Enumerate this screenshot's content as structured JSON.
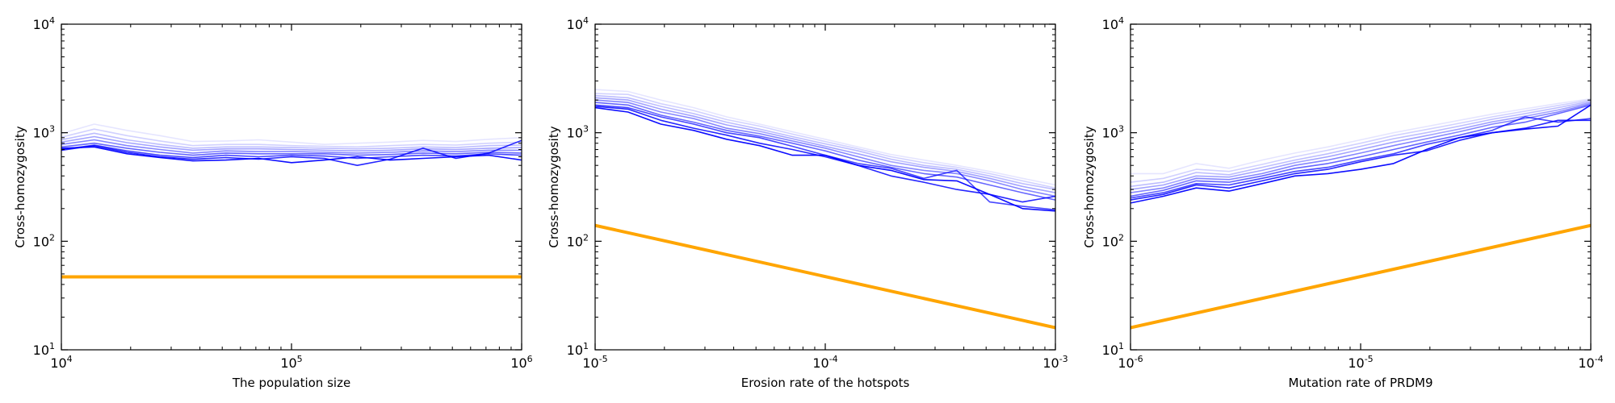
{
  "chart_data": [
    {
      "type": "line",
      "title": "",
      "xlabel": "The population size",
      "ylabel": "Cross-homozygosity",
      "xscale": "log",
      "yscale": "log",
      "xlim": [
        10000,
        1000000
      ],
      "ylim": [
        10,
        10000
      ],
      "x_ticks": [
        {
          "base": "10",
          "exp": "4"
        },
        {
          "base": "10",
          "exp": "5"
        },
        {
          "base": "10",
          "exp": "6"
        }
      ],
      "y_ticks": [
        {
          "base": "10",
          "exp": "1"
        },
        {
          "base": "10",
          "exp": "2"
        },
        {
          "base": "10",
          "exp": "3"
        },
        {
          "base": "10",
          "exp": "4"
        }
      ],
      "x": [
        10000,
        13895,
        19307,
        26827,
        37276,
        51795,
        71969,
        100000,
        138950,
        193070,
        268270,
        372760,
        517950,
        719690,
        1000000
      ],
      "series": [
        {
          "color": "#0000ff",
          "opacity": 0.95,
          "values": [
            720,
            740,
            640,
            590,
            550,
            560,
            580,
            530,
            560,
            600,
            560,
            580,
            600,
            620,
            560
          ]
        },
        {
          "color": "#0000ff",
          "opacity": 0.85,
          "values": [
            690,
            760,
            660,
            600,
            570,
            590,
            570,
            600,
            580,
            500,
            570,
            720,
            580,
            650,
            850
          ]
        },
        {
          "color": "#0000ff",
          "opacity": 0.72,
          "values": [
            700,
            770,
            680,
            620,
            590,
            620,
            600,
            620,
            610,
            580,
            600,
            620,
            610,
            640,
            620
          ]
        },
        {
          "color": "#0000ff",
          "opacity": 0.6,
          "values": [
            740,
            800,
            720,
            660,
            620,
            650,
            640,
            640,
            640,
            620,
            630,
            650,
            640,
            660,
            650
          ]
        },
        {
          "color": "#0000ff",
          "opacity": 0.48,
          "values": [
            780,
            860,
            760,
            700,
            650,
            680,
            670,
            670,
            660,
            650,
            660,
            680,
            670,
            690,
            690
          ]
        },
        {
          "color": "#0000ff",
          "opacity": 0.36,
          "values": [
            820,
            920,
            810,
            740,
            690,
            710,
            710,
            700,
            690,
            680,
            690,
            710,
            700,
            720,
            730
          ]
        },
        {
          "color": "#0000ff",
          "opacity": 0.26,
          "values": [
            860,
            990,
            860,
            780,
            720,
            740,
            740,
            730,
            720,
            710,
            720,
            740,
            730,
            760,
            770
          ]
        },
        {
          "color": "#0000ff",
          "opacity": 0.18,
          "values": [
            910,
            1080,
            940,
            840,
            760,
            780,
            780,
            760,
            750,
            740,
            760,
            780,
            770,
            800,
            820
          ]
        },
        {
          "color": "#0000ff",
          "opacity": 0.1,
          "values": [
            980,
            1200,
            1050,
            940,
            830,
            840,
            860,
            820,
            780,
            800,
            820,
            850,
            830,
            870,
            900
          ]
        }
      ],
      "reference_line": {
        "color": "#ffa500",
        "x": [
          10000,
          1000000
        ],
        "values": [
          47,
          47
        ]
      }
    },
    {
      "type": "line",
      "title": "",
      "xlabel": "Erosion rate of the hotspots",
      "ylabel": "Cross-homozygosity",
      "xscale": "log",
      "yscale": "log",
      "xlim": [
        1e-05,
        0.001
      ],
      "ylim": [
        10,
        10000
      ],
      "x_ticks": [
        {
          "base": "10",
          "exp": "-5"
        },
        {
          "base": "10",
          "exp": "-4"
        },
        {
          "base": "10",
          "exp": "-3"
        }
      ],
      "y_ticks": [
        {
          "base": "10",
          "exp": "1"
        },
        {
          "base": "10",
          "exp": "2"
        },
        {
          "base": "10",
          "exp": "3"
        },
        {
          "base": "10",
          "exp": "4"
        }
      ],
      "x": [
        1e-05,
        1.3895e-05,
        1.9307e-05,
        2.6827e-05,
        3.7276e-05,
        5.1795e-05,
        7.1969e-05,
        0.0001,
        0.00013895,
        0.00019307,
        0.00026827,
        0.00037276,
        0.00051795,
        0.00071969,
        0.001
      ],
      "series": [
        {
          "color": "#0000ff",
          "opacity": 0.95,
          "values": [
            1700,
            1550,
            1200,
            1050,
            870,
            760,
            620,
            620,
            500,
            450,
            370,
            360,
            270,
            200,
            190
          ]
        },
        {
          "color": "#0000ff",
          "opacity": 0.85,
          "values": [
            1750,
            1650,
            1300,
            1100,
            950,
            800,
            700,
            600,
            500,
            400,
            350,
            300,
            270,
            230,
            260
          ]
        },
        {
          "color": "#0000ff",
          "opacity": 0.72,
          "values": [
            1800,
            1700,
            1400,
            1200,
            1000,
            900,
            750,
            620,
            520,
            470,
            380,
            450,
            230,
            210,
            195
          ]
        },
        {
          "color": "#0000ff",
          "opacity": 0.6,
          "values": [
            1900,
            1800,
            1450,
            1250,
            1050,
            930,
            800,
            680,
            560,
            480,
            420,
            390,
            330,
            280,
            240
          ]
        },
        {
          "color": "#0000ff",
          "opacity": 0.48,
          "values": [
            2000,
            1900,
            1550,
            1350,
            1100,
            980,
            840,
            720,
            600,
            500,
            450,
            420,
            360,
            300,
            260
          ]
        },
        {
          "color": "#0000ff",
          "opacity": 0.36,
          "values": [
            2100,
            2000,
            1650,
            1420,
            1180,
            1030,
            880,
            750,
            640,
            540,
            480,
            440,
            380,
            320,
            280
          ]
        },
        {
          "color": "#0000ff",
          "opacity": 0.26,
          "values": [
            2200,
            2100,
            1750,
            1500,
            1250,
            1080,
            920,
            790,
            680,
            570,
            500,
            460,
            400,
            340,
            300
          ]
        },
        {
          "color": "#0000ff",
          "opacity": 0.18,
          "values": [
            2300,
            2250,
            1850,
            1600,
            1320,
            1150,
            970,
            830,
            710,
            600,
            530,
            480,
            420,
            360,
            310
          ]
        },
        {
          "color": "#0000ff",
          "opacity": 0.1,
          "values": [
            2500,
            2400,
            2000,
            1700,
            1400,
            1200,
            1020,
            870,
            740,
            630,
            560,
            500,
            440,
            380,
            330
          ]
        }
      ],
      "reference_line": {
        "color": "#ffa500",
        "x": [
          1e-05,
          0.001
        ],
        "values": [
          140,
          16
        ]
      }
    },
    {
      "type": "line",
      "title": "",
      "xlabel": "Mutation rate of PRDM9",
      "ylabel": "Cross-homozygosity",
      "xscale": "log",
      "yscale": "log",
      "xlim": [
        1e-06,
        0.0001
      ],
      "ylim": [
        10,
        10000
      ],
      "x_ticks": [
        {
          "base": "10",
          "exp": "-6"
        },
        {
          "base": "10",
          "exp": "-5"
        },
        {
          "base": "10",
          "exp": "-4"
        }
      ],
      "y_ticks": [
        {
          "base": "10",
          "exp": "1"
        },
        {
          "base": "10",
          "exp": "2"
        },
        {
          "base": "10",
          "exp": "3"
        },
        {
          "base": "10",
          "exp": "4"
        }
      ],
      "x": [
        1e-06,
        1.3895e-06,
        1.9307e-06,
        2.6827e-06,
        3.7276e-06,
        5.1795e-06,
        7.1969e-06,
        1e-05,
        1.3895e-05,
        1.9307e-05,
        2.6827e-05,
        3.7276e-05,
        5.1795e-05,
        7.1969e-05,
        0.0001
      ],
      "series": [
        {
          "color": "#0000ff",
          "opacity": 0.95,
          "values": [
            225,
            260,
            310,
            290,
            340,
            400,
            420,
            460,
            520,
            700,
            900,
            1000,
            1080,
            1150,
            1800
          ]
        },
        {
          "color": "#0000ff",
          "opacity": 0.85,
          "values": [
            240,
            270,
            330,
            310,
            360,
            420,
            460,
            540,
            620,
            680,
            850,
            1000,
            1100,
            1300,
            1300
          ]
        },
        {
          "color": "#0000ff",
          "opacity": 0.72,
          "values": [
            250,
            280,
            340,
            330,
            380,
            440,
            480,
            560,
            640,
            780,
            900,
            1050,
            1400,
            1250,
            1350
          ]
        },
        {
          "color": "#0000ff",
          "opacity": 0.6,
          "values": [
            260,
            295,
            360,
            350,
            400,
            470,
            520,
            600,
            700,
            820,
            950,
            1120,
            1250,
            1500,
            1800
          ]
        },
        {
          "color": "#0000ff",
          "opacity": 0.48,
          "values": [
            280,
            310,
            380,
            370,
            420,
            500,
            560,
            650,
            760,
            880,
            1020,
            1200,
            1350,
            1550,
            1850
          ]
        },
        {
          "color": "#0000ff",
          "opacity": 0.36,
          "values": [
            300,
            330,
            400,
            390,
            450,
            530,
            600,
            700,
            820,
            940,
            1080,
            1260,
            1420,
            1620,
            1900
          ]
        },
        {
          "color": "#0000ff",
          "opacity": 0.26,
          "values": [
            320,
            350,
            430,
            410,
            480,
            560,
            640,
            750,
            880,
            1000,
            1150,
            1330,
            1500,
            1700,
            1950
          ]
        },
        {
          "color": "#0000ff",
          "opacity": 0.18,
          "values": [
            350,
            380,
            460,
            440,
            510,
            600,
            690,
            800,
            940,
            1070,
            1220,
            1400,
            1580,
            1780,
            2000
          ]
        },
        {
          "color": "#0000ff",
          "opacity": 0.1,
          "values": [
            420,
            420,
            520,
            470,
            560,
            650,
            740,
            860,
            1000,
            1140,
            1300,
            1480,
            1660,
            1860,
            2050
          ]
        }
      ],
      "reference_line": {
        "color": "#ffa500",
        "x": [
          1e-06,
          0.0001
        ],
        "values": [
          16,
          140
        ]
      }
    }
  ]
}
